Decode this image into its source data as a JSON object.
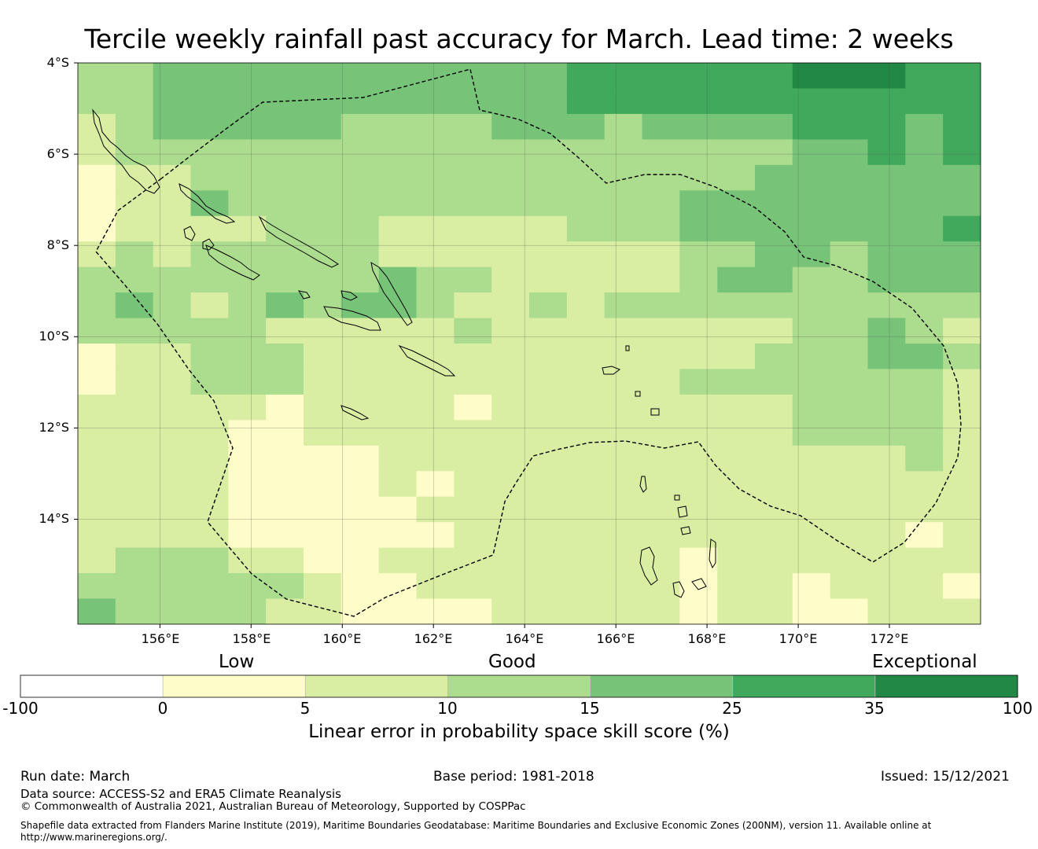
{
  "title": "Tercile weekly rainfall past accuracy for March. Lead time: 2 weeks",
  "map": {
    "lat_labels": [
      "4°S",
      "6°S",
      "8°S",
      "10°S",
      "12°S",
      "14°S"
    ],
    "lon_labels": [
      "156°E",
      "158°E",
      "160°E",
      "162°E",
      "164°E",
      "166°E",
      "168°E",
      "170°E",
      "172°E"
    ],
    "grid_rows": 22,
    "grid_cols": 24,
    "legend_colors": [
      "#ffffff",
      "#fefdc9",
      "#d9eda3",
      "#acdc8e",
      "#77c479",
      "#40a95b",
      "#228845"
    ],
    "cells": [
      "334444444444455555566655",
      "334444444444455555555555",
      "234444433334443444455545",
      "233333333333333333344545",
      "122333333333333333444444",
      "122433333333333344444444",
      "122223332222233344444445",
      "232333332222222233443444",
      "333333334332222234433444",
      "343234344322323333333333",
      "333332222232222222233432",
      "122333222222222222333443",
      "122333222222222233333332",
      "222221222212222222233332",
      "222211222222222222233332",
      "222211112222222222222232",
      "222211112122222222222222",
      "222211111222222222222222",
      "222211111122222222222212",
      "233322112222222212222222",
      "333333211222222212212221",
      "433332211112222212211222"
    ]
  },
  "chart_data": {
    "type": "heatmap",
    "title": "Tercile weekly rainfall past accuracy for March. Lead time: 2 weeks",
    "xlabel": "Longitude",
    "ylabel": "Latitude",
    "xlim": [
      154.2,
      174
    ],
    "ylim": [
      -16.3,
      -4
    ],
    "colorbar": {
      "label": "Linear error in probability space skill score (%)",
      "bounds": [
        -100,
        0,
        5,
        10,
        15,
        25,
        35,
        100
      ],
      "tick_labels": [
        "-100",
        "0",
        "5",
        "10",
        "15",
        "25",
        "35",
        "100"
      ],
      "categories": [
        "Low",
        "Good",
        "Exceptional"
      ]
    }
  },
  "colorbar": {
    "categories": [
      "Low",
      "Good",
      "Exceptional"
    ],
    "ticks": [
      "-100",
      "0",
      "5",
      "10",
      "15",
      "25",
      "35",
      "100"
    ],
    "label": "Linear error in probability space skill score (%)"
  },
  "footer": {
    "run_date": "Run date: March",
    "base_period": "Base period: 1981-2018",
    "issued": "Issued: 15/12/2021",
    "data_source": "Data source: ACCESS-S2 and ERA5 Climate Reanalysis",
    "copyright": "© Commonwealth of Australia 2021, Australian Bureau of Meteorology, Supported by COSPPac",
    "shapefile_note": "Shapefile data extracted from Flanders Marine Institute (2019), Maritime Boundaries Geodatabase: Maritime Boundaries and Exclusive Economic Zones (200NM), version 11. Available online at http://www.marineregions.org/."
  }
}
